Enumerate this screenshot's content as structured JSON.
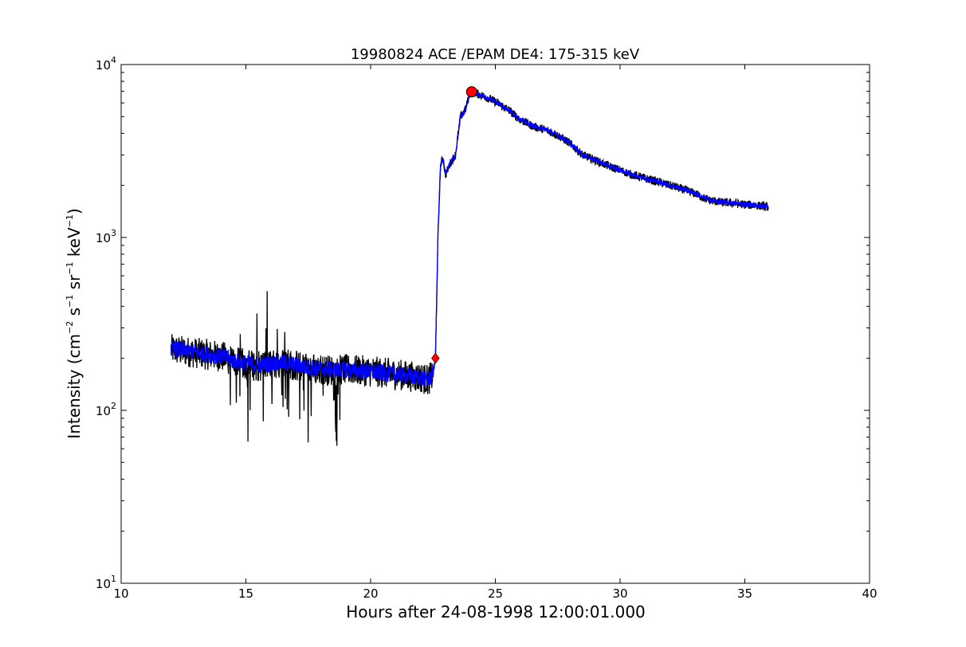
{
  "chart_data": {
    "type": "line",
    "title": "19980824 ACE /EPAM DE4: 175-315 keV",
    "xlabel": "Hours after 24-08-1998 12:00:01.000",
    "ylabel": "Intensity (cm⁻² s⁻¹ sr⁻¹ keV⁻¹)",
    "ylabel_parts": {
      "prefix": "Intensity (cm",
      "exp1": "−2",
      "s": " s",
      "exp2": "−1",
      "sr": " sr",
      "exp3": "−1",
      "kev": " keV",
      "exp4": "−1",
      "suffix": ")"
    },
    "xlim": [
      10,
      40
    ],
    "ylim": [
      10,
      10000
    ],
    "yscale": "log",
    "grid": false,
    "x_ticks": [
      {
        "value": 10,
        "label": "10"
      },
      {
        "value": 15,
        "label": "15"
      },
      {
        "value": 20,
        "label": "20"
      },
      {
        "value": 25,
        "label": "25"
      },
      {
        "value": 30,
        "label": "30"
      },
      {
        "value": 35,
        "label": "35"
      },
      {
        "value": 40,
        "label": "40"
      }
    ],
    "y_ticks": [
      {
        "value": 10,
        "base": "10",
        "exp": "1"
      },
      {
        "value": 100,
        "base": "10",
        "exp": "2"
      },
      {
        "value": 1000,
        "base": "10",
        "exp": "3"
      },
      {
        "value": 10000,
        "base": "10",
        "exp": "4"
      }
    ],
    "series": [
      {
        "role": "raw",
        "color": "#000000",
        "x": [
          12.0,
          12.5,
          13.0,
          13.5,
          14.0,
          14.3,
          14.5,
          15.0,
          15.5,
          16.0,
          16.5,
          17.0,
          17.5,
          18.0,
          18.5,
          19.0,
          19.5,
          20.0,
          20.5,
          21.0,
          21.5,
          22.0,
          22.3,
          22.5,
          22.6,
          22.7,
          22.8,
          22.9,
          23.0,
          23.2,
          23.4,
          23.6,
          23.8,
          24.0,
          24.5,
          25.0,
          25.5,
          26.0,
          26.5,
          27.0,
          27.5,
          28.0,
          28.5,
          29.0,
          29.5,
          30.0,
          30.5,
          31.0,
          31.5,
          32.0,
          32.5,
          33.0,
          33.5,
          34.0,
          34.5,
          35.0,
          35.5,
          35.95
        ],
        "y": [
          225,
          220,
          215,
          210,
          205,
          200,
          190,
          185,
          180,
          185,
          190,
          180,
          175,
          172,
          170,
          172,
          170,
          168,
          165,
          162,
          158,
          155,
          150,
          160,
          200,
          1000,
          2600,
          2900,
          2300,
          2700,
          3000,
          5000,
          5500,
          7000,
          6600,
          6100,
          5500,
          4800,
          4400,
          4200,
          3900,
          3500,
          3000,
          2800,
          2600,
          2450,
          2300,
          2200,
          2100,
          2000,
          1900,
          1800,
          1650,
          1600,
          1580,
          1550,
          1530,
          1500
        ]
      },
      {
        "role": "smoothed",
        "color": "#0000ff",
        "x": [
          12.0,
          12.5,
          13.0,
          13.5,
          14.0,
          14.3,
          14.5,
          15.0,
          15.5,
          16.0,
          16.5,
          17.0,
          17.5,
          18.0,
          18.5,
          19.0,
          19.5,
          20.0,
          20.5,
          21.0,
          21.5,
          22.0,
          22.3,
          22.5,
          22.6,
          22.7,
          22.8,
          22.9,
          23.0,
          23.2,
          23.4,
          23.6,
          23.8,
          24.0,
          24.5,
          25.0,
          25.5,
          26.0,
          26.5,
          27.0,
          27.5,
          28.0,
          28.5,
          29.0,
          29.5,
          30.0,
          30.5,
          31.0,
          31.5,
          32.0,
          32.5,
          33.0,
          33.5,
          34.0,
          34.5,
          35.0,
          35.5,
          35.95
        ],
        "y": [
          225,
          222,
          215,
          210,
          205,
          200,
          192,
          187,
          182,
          186,
          188,
          182,
          176,
          173,
          171,
          171,
          169,
          167,
          164,
          161,
          157,
          154,
          150,
          160,
          205,
          1050,
          2550,
          2850,
          2350,
          2700,
          2950,
          4950,
          5450,
          7000,
          6550,
          6100,
          5500,
          4800,
          4400,
          4200,
          3900,
          3500,
          3000,
          2800,
          2600,
          2450,
          2300,
          2200,
          2100,
          2000,
          1900,
          1800,
          1650,
          1600,
          1580,
          1550,
          1530,
          1500
        ]
      }
    ],
    "markers": [
      {
        "shape": "diamond",
        "color": "#ff0000",
        "x": 22.6,
        "y": 200
      },
      {
        "shape": "circle",
        "color": "#ff0000",
        "x": 24.05,
        "y": 6950
      }
    ]
  }
}
